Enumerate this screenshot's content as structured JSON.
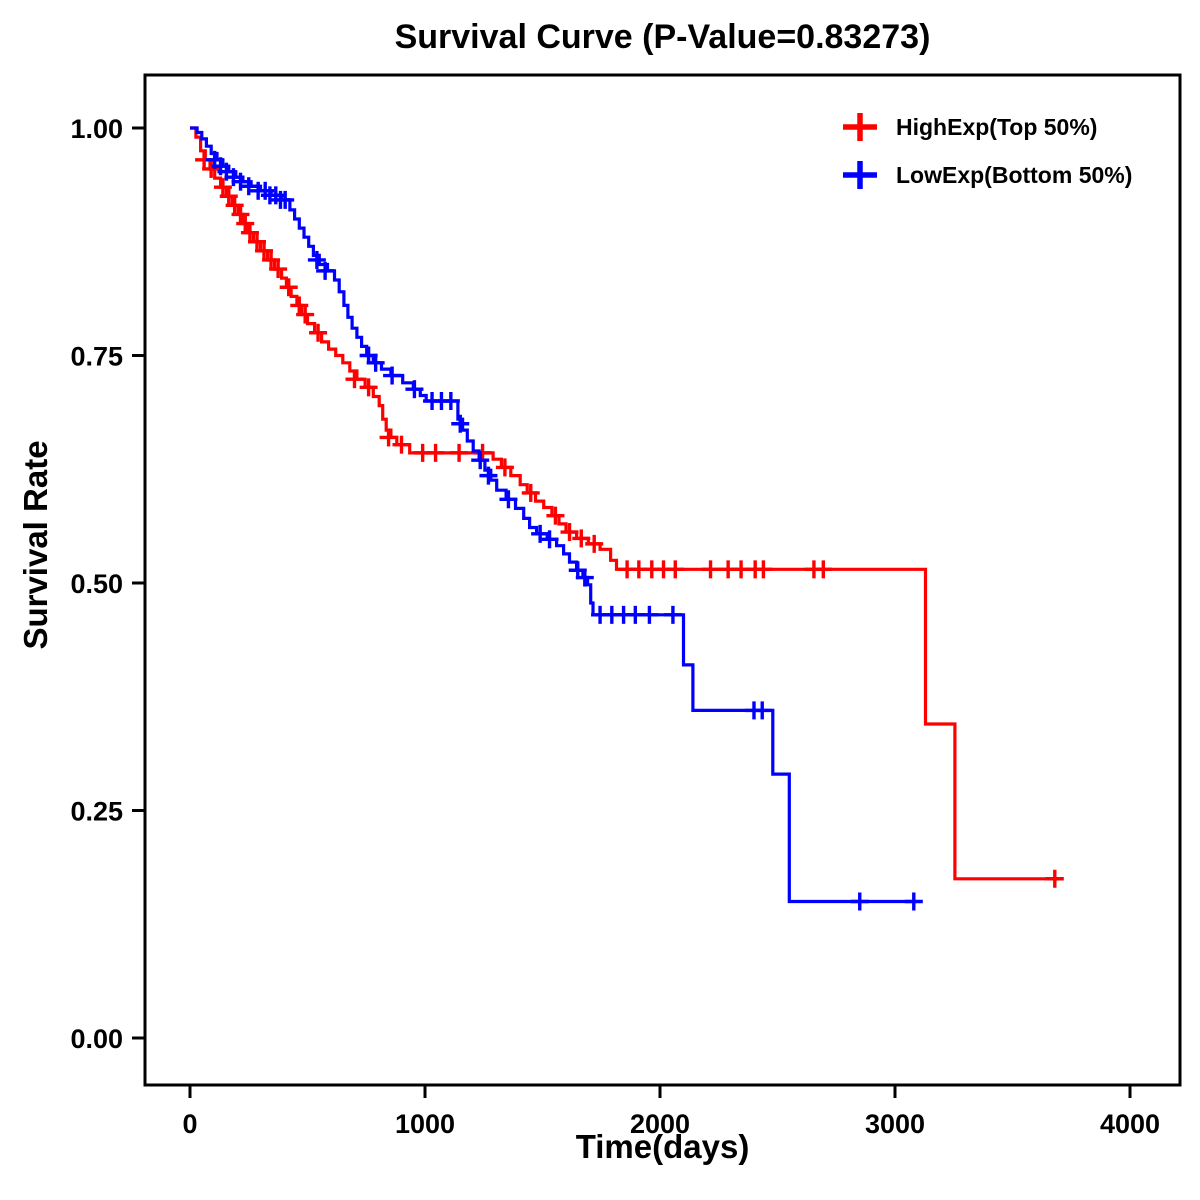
{
  "chart_data": {
    "type": "line",
    "subtype": "kaplan_meier_step",
    "title": "Survival Curve (P-Value=0.83273)",
    "p_value": 0.83273,
    "xlabel": "Time(days)",
    "ylabel": "Survival Rate",
    "xlim": [
      0,
      4000
    ],
    "ylim": [
      0,
      1
    ],
    "xticks": [
      0,
      1000,
      2000,
      3000,
      4000
    ],
    "xtick_labels": [
      "0",
      "1000",
      "2000",
      "3000",
      "4000"
    ],
    "yticks": [
      0,
      0.25,
      0.5,
      0.75,
      1
    ],
    "ytick_labels": [
      "0.00",
      "0.25",
      "0.50",
      "0.75",
      "1.00"
    ],
    "grid": false,
    "legend_position": "top-right",
    "series": [
      {
        "name": "HighExp(Top 50%)",
        "color": "#FF0000",
        "steps": [
          [
            0,
            1.0
          ],
          [
            25,
            0.99
          ],
          [
            45,
            0.975
          ],
          [
            65,
            0.965
          ],
          [
            85,
            0.955
          ],
          [
            105,
            0.945
          ],
          [
            130,
            0.935
          ],
          [
            155,
            0.925
          ],
          [
            180,
            0.915
          ],
          [
            205,
            0.905
          ],
          [
            225,
            0.895
          ],
          [
            245,
            0.885
          ],
          [
            270,
            0.875
          ],
          [
            300,
            0.865
          ],
          [
            330,
            0.855
          ],
          [
            360,
            0.845
          ],
          [
            390,
            0.835
          ],
          [
            410,
            0.825
          ],
          [
            430,
            0.815
          ],
          [
            455,
            0.805
          ],
          [
            475,
            0.795
          ],
          [
            500,
            0.785
          ],
          [
            530,
            0.775
          ],
          [
            560,
            0.765
          ],
          [
            590,
            0.757
          ],
          [
            620,
            0.75
          ],
          [
            650,
            0.742
          ],
          [
            680,
            0.733
          ],
          [
            710,
            0.724
          ],
          [
            745,
            0.715
          ],
          [
            780,
            0.705
          ],
          [
            805,
            0.695
          ],
          [
            820,
            0.68
          ],
          [
            835,
            0.668
          ],
          [
            855,
            0.66
          ],
          [
            880,
            0.652
          ],
          [
            935,
            0.643
          ],
          [
            1290,
            0.636
          ],
          [
            1325,
            0.627
          ],
          [
            1365,
            0.618
          ],
          [
            1405,
            0.608
          ],
          [
            1435,
            0.599
          ],
          [
            1470,
            0.59
          ],
          [
            1505,
            0.583
          ],
          [
            1540,
            0.574
          ],
          [
            1570,
            0.565
          ],
          [
            1600,
            0.556
          ],
          [
            1645,
            0.549
          ],
          [
            1695,
            0.543
          ],
          [
            1745,
            0.537
          ],
          [
            1790,
            0.525
          ],
          [
            1815,
            0.515
          ],
          [
            3130,
            0.345
          ],
          [
            3255,
            0.175
          ],
          [
            3700,
            0.175
          ]
        ],
        "censors": [
          [
            60,
            0.965
          ],
          [
            90,
            0.955
          ],
          [
            140,
            0.935
          ],
          [
            165,
            0.925
          ],
          [
            190,
            0.915
          ],
          [
            215,
            0.905
          ],
          [
            235,
            0.895
          ],
          [
            255,
            0.885
          ],
          [
            285,
            0.875
          ],
          [
            315,
            0.865
          ],
          [
            345,
            0.855
          ],
          [
            375,
            0.845
          ],
          [
            420,
            0.825
          ],
          [
            465,
            0.805
          ],
          [
            490,
            0.795
          ],
          [
            545,
            0.775
          ],
          [
            700,
            0.724
          ],
          [
            760,
            0.715
          ],
          [
            845,
            0.66
          ],
          [
            900,
            0.652
          ],
          [
            990,
            0.643
          ],
          [
            1045,
            0.643
          ],
          [
            1145,
            0.643
          ],
          [
            1245,
            0.643
          ],
          [
            1340,
            0.627
          ],
          [
            1450,
            0.599
          ],
          [
            1555,
            0.574
          ],
          [
            1615,
            0.556
          ],
          [
            1665,
            0.549
          ],
          [
            1720,
            0.543
          ],
          [
            1860,
            0.515
          ],
          [
            1910,
            0.515
          ],
          [
            1965,
            0.515
          ],
          [
            2015,
            0.515
          ],
          [
            2065,
            0.515
          ],
          [
            2215,
            0.515
          ],
          [
            2290,
            0.515
          ],
          [
            2345,
            0.515
          ],
          [
            2405,
            0.515
          ],
          [
            2440,
            0.515
          ],
          [
            2655,
            0.515
          ],
          [
            2695,
            0.515
          ],
          [
            3680,
            0.175
          ]
        ]
      },
      {
        "name": "LowExp(Bottom 50%)",
        "color": "#0000FF",
        "steps": [
          [
            0,
            1.0
          ],
          [
            30,
            0.995
          ],
          [
            50,
            0.988
          ],
          [
            70,
            0.98
          ],
          [
            90,
            0.972
          ],
          [
            115,
            0.965
          ],
          [
            140,
            0.958
          ],
          [
            165,
            0.952
          ],
          [
            195,
            0.946
          ],
          [
            225,
            0.941
          ],
          [
            260,
            0.936
          ],
          [
            300,
            0.931
          ],
          [
            345,
            0.926
          ],
          [
            390,
            0.921
          ],
          [
            425,
            0.91
          ],
          [
            445,
            0.9
          ],
          [
            465,
            0.89
          ],
          [
            485,
            0.88
          ],
          [
            505,
            0.87
          ],
          [
            525,
            0.86
          ],
          [
            550,
            0.85
          ],
          [
            585,
            0.843
          ],
          [
            615,
            0.833
          ],
          [
            635,
            0.82
          ],
          [
            655,
            0.805
          ],
          [
            672,
            0.792
          ],
          [
            690,
            0.78
          ],
          [
            710,
            0.77
          ],
          [
            730,
            0.76
          ],
          [
            752,
            0.75
          ],
          [
            780,
            0.742
          ],
          [
            815,
            0.735
          ],
          [
            855,
            0.728
          ],
          [
            905,
            0.72
          ],
          [
            950,
            0.713
          ],
          [
            980,
            0.706
          ],
          [
            1005,
            0.7
          ],
          [
            1140,
            0.68
          ],
          [
            1160,
            0.668
          ],
          [
            1180,
            0.656
          ],
          [
            1205,
            0.645
          ],
          [
            1230,
            0.635
          ],
          [
            1255,
            0.624
          ],
          [
            1280,
            0.613
          ],
          [
            1305,
            0.602
          ],
          [
            1345,
            0.592
          ],
          [
            1385,
            0.582
          ],
          [
            1420,
            0.571
          ],
          [
            1445,
            0.561
          ],
          [
            1475,
            0.554
          ],
          [
            1520,
            0.548
          ],
          [
            1560,
            0.541
          ],
          [
            1590,
            0.532
          ],
          [
            1615,
            0.523
          ],
          [
            1645,
            0.514
          ],
          [
            1672,
            0.506
          ],
          [
            1692,
            0.498
          ],
          [
            1705,
            0.478
          ],
          [
            1715,
            0.465
          ],
          [
            2100,
            0.41
          ],
          [
            2140,
            0.36
          ],
          [
            2480,
            0.29
          ],
          [
            2550,
            0.15
          ],
          [
            3090,
            0.15
          ]
        ],
        "censors": [
          [
            105,
            0.965
          ],
          [
            130,
            0.958
          ],
          [
            155,
            0.952
          ],
          [
            185,
            0.946
          ],
          [
            215,
            0.941
          ],
          [
            250,
            0.936
          ],
          [
            290,
            0.931
          ],
          [
            320,
            0.931
          ],
          [
            340,
            0.926
          ],
          [
            365,
            0.926
          ],
          [
            385,
            0.921
          ],
          [
            405,
            0.921
          ],
          [
            540,
            0.855
          ],
          [
            575,
            0.843
          ],
          [
            760,
            0.75
          ],
          [
            790,
            0.742
          ],
          [
            860,
            0.728
          ],
          [
            955,
            0.713
          ],
          [
            1030,
            0.7
          ],
          [
            1070,
            0.7
          ],
          [
            1110,
            0.7
          ],
          [
            1150,
            0.675
          ],
          [
            1235,
            0.635
          ],
          [
            1270,
            0.618
          ],
          [
            1355,
            0.592
          ],
          [
            1490,
            0.554
          ],
          [
            1530,
            0.548
          ],
          [
            1650,
            0.514
          ],
          [
            1680,
            0.506
          ],
          [
            1745,
            0.465
          ],
          [
            1795,
            0.465
          ],
          [
            1845,
            0.465
          ],
          [
            1895,
            0.465
          ],
          [
            1955,
            0.465
          ],
          [
            2055,
            0.465
          ],
          [
            2400,
            0.36
          ],
          [
            2435,
            0.36
          ],
          [
            2850,
            0.15
          ],
          [
            3080,
            0.15
          ]
        ]
      }
    ]
  }
}
